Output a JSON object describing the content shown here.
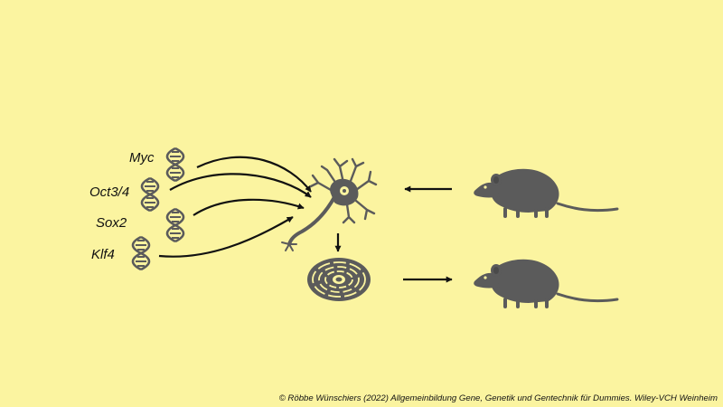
{
  "colors": {
    "background": "#fbf4a0",
    "figure": "#5b5b5b",
    "arrow": "#111111"
  },
  "genes": [
    {
      "name": "Myc"
    },
    {
      "name": "Oct3/4"
    },
    {
      "name": "Sox2"
    },
    {
      "name": "Klf4"
    }
  ],
  "icons": {
    "dna": "dna-helix-icon",
    "neuron": "neuron-cell-icon",
    "stem_cell": "stem-cell-icon",
    "mouse": "mouse-icon"
  },
  "copyright": "© Röbbe Wünschiers (2022) Allgemeinbildung Gene, Genetik und Gentechnik für Dummies. Wiley-VCH Weinheim"
}
